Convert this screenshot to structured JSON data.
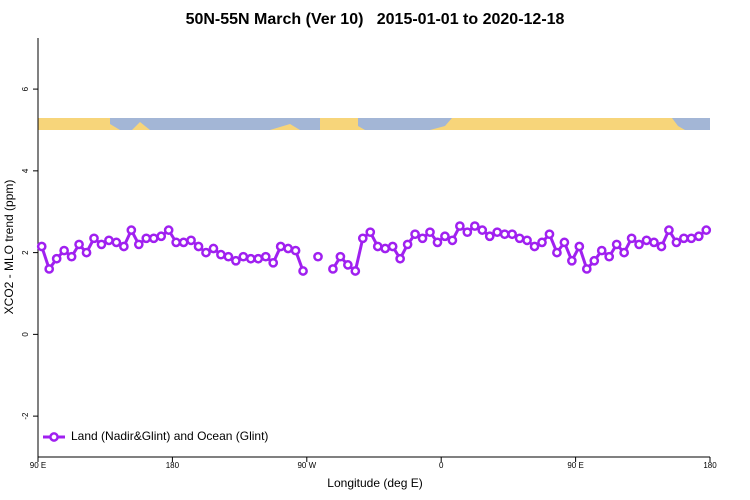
{
  "chart_data": {
    "type": "line",
    "title": "50N-55N March (Ver 10)   2015-01-01 to 2020-12-18",
    "x_label": "Longitude (deg E)",
    "y_label": "XCO2 - MLO trend (ppm)",
    "x": [
      92.5,
      97.5,
      102.5,
      107.5,
      112.5,
      117.5,
      122.5,
      127.5,
      132.5,
      137.5,
      142.5,
      147.5,
      152.5,
      157.5,
      162.5,
      167.5,
      172.5,
      177.5,
      182.5,
      187.5,
      192.5,
      197.5,
      202.5,
      207.5,
      212.5,
      217.5,
      222.5,
      227.5,
      232.5,
      237.5,
      242.5,
      247.5,
      252.5,
      257.5,
      262.5,
      267.5,
      272.5,
      277.5,
      282.5,
      287.5,
      292.5,
      297.5,
      302.5,
      307.5,
      312.5,
      317.5,
      322.5,
      327.5,
      332.5,
      337.5,
      342.5,
      347.5,
      352.5,
      357.5,
      362.5,
      367.5,
      372.5,
      377.5,
      382.5,
      387.5,
      392.5,
      397.5,
      402.5,
      407.5,
      412.5,
      417.5,
      422.5,
      427.5,
      432.5,
      437.5,
      442.5,
      447.5,
      452.5,
      457.5,
      462.5,
      467.5,
      472.5,
      477.5,
      482.5,
      487.5,
      492.5,
      497.5,
      502.5,
      507.5,
      512.5,
      517.5,
      522.5,
      527.5,
      532.5,
      537.5
    ],
    "series": [
      {
        "name": "Land (Nadir&Glint) and Ocean (Glint)",
        "color": "#a020f0",
        "values": [
          2.15,
          1.6,
          1.85,
          2.05,
          1.9,
          2.2,
          2.0,
          2.35,
          2.2,
          2.3,
          2.25,
          2.15,
          2.55,
          2.2,
          2.35,
          2.35,
          2.4,
          2.55,
          2.25,
          2.25,
          2.3,
          2.15,
          2.0,
          2.1,
          1.95,
          1.9,
          1.8,
          1.9,
          1.85,
          1.85,
          1.9,
          1.75,
          2.15,
          2.1,
          2.05,
          1.55,
          null,
          1.9,
          null,
          1.6,
          1.9,
          1.7,
          1.55,
          2.35,
          2.5,
          2.15,
          2.1,
          2.15,
          1.85,
          2.2,
          2.45,
          2.35,
          2.5,
          2.25,
          2.4,
          2.3,
          2.65,
          2.5,
          2.65,
          2.55,
          2.4,
          2.5,
          2.45,
          2.45,
          2.35,
          2.3,
          2.15,
          2.25,
          2.45,
          2.0,
          2.25,
          1.8,
          2.15,
          1.6,
          1.8,
          2.05,
          1.9,
          2.2,
          2.0,
          2.35,
          2.2,
          2.3,
          2.25,
          2.15,
          2.55,
          2.25,
          2.35,
          2.35,
          2.4,
          2.55
        ]
      }
    ],
    "xlim": [
      90,
      540
    ],
    "xticks": [
      {
        "value": 90,
        "label": "90 E"
      },
      180,
      {
        "value": 270,
        "label": "90 W"
      },
      {
        "value": 360,
        "label": "0"
      },
      {
        "value": 450,
        "label": "90 E"
      },
      {
        "value": 540,
        "label": "180"
      }
    ],
    "ylim": [
      -3,
      7.25
    ],
    "yticks": [
      -2,
      0,
      2,
      4,
      6
    ],
    "legend": "bottom-left"
  }
}
